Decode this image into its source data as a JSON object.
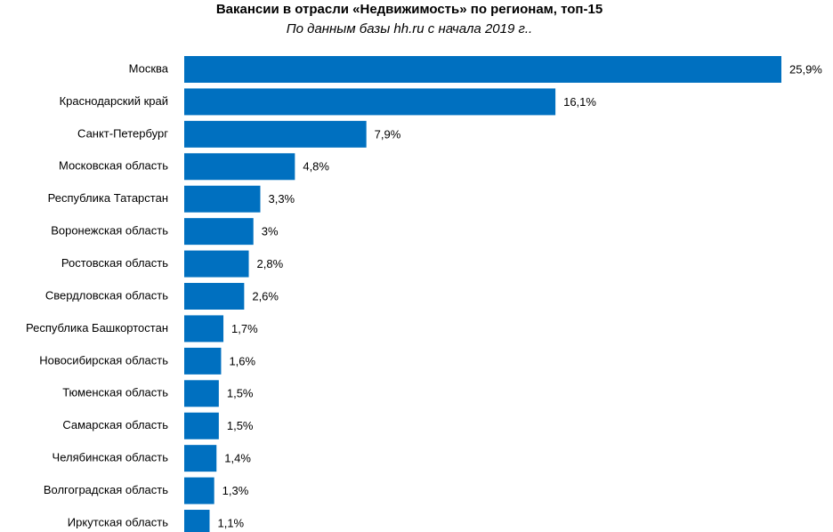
{
  "chart_data": {
    "type": "bar",
    "orientation": "horizontal",
    "title": "Вакансии в отрасли «Недвижимость» по регионам, топ-15",
    "subtitle": "По данным базы hh.ru с начала 2019 г..",
    "categories": [
      "Москва",
      "Краснодарский край",
      "Санкт-Петербург",
      "Московская область",
      "Республика Татарстан",
      "Воронежская область",
      "Ростовская область",
      "Свердловская область",
      "Республика Башкортостан",
      "Новосибирская область",
      "Тюменская область",
      "Самарская область",
      "Челябинская область",
      "Волгоградская область",
      "Иркутская область"
    ],
    "values": [
      25.9,
      16.1,
      7.9,
      4.8,
      3.3,
      3,
      2.8,
      2.6,
      1.7,
      1.6,
      1.5,
      1.5,
      1.4,
      1.3,
      1.1
    ],
    "value_labels": [
      "25,9%",
      "16,1%",
      "7,9%",
      "4,8%",
      "3,3%",
      "3%",
      "2,8%",
      "2,6%",
      "1,7%",
      "1,6%",
      "1,5%",
      "1,5%",
      "1,4%",
      "1,3%",
      "1,1%"
    ],
    "color": "#0070c0"
  }
}
